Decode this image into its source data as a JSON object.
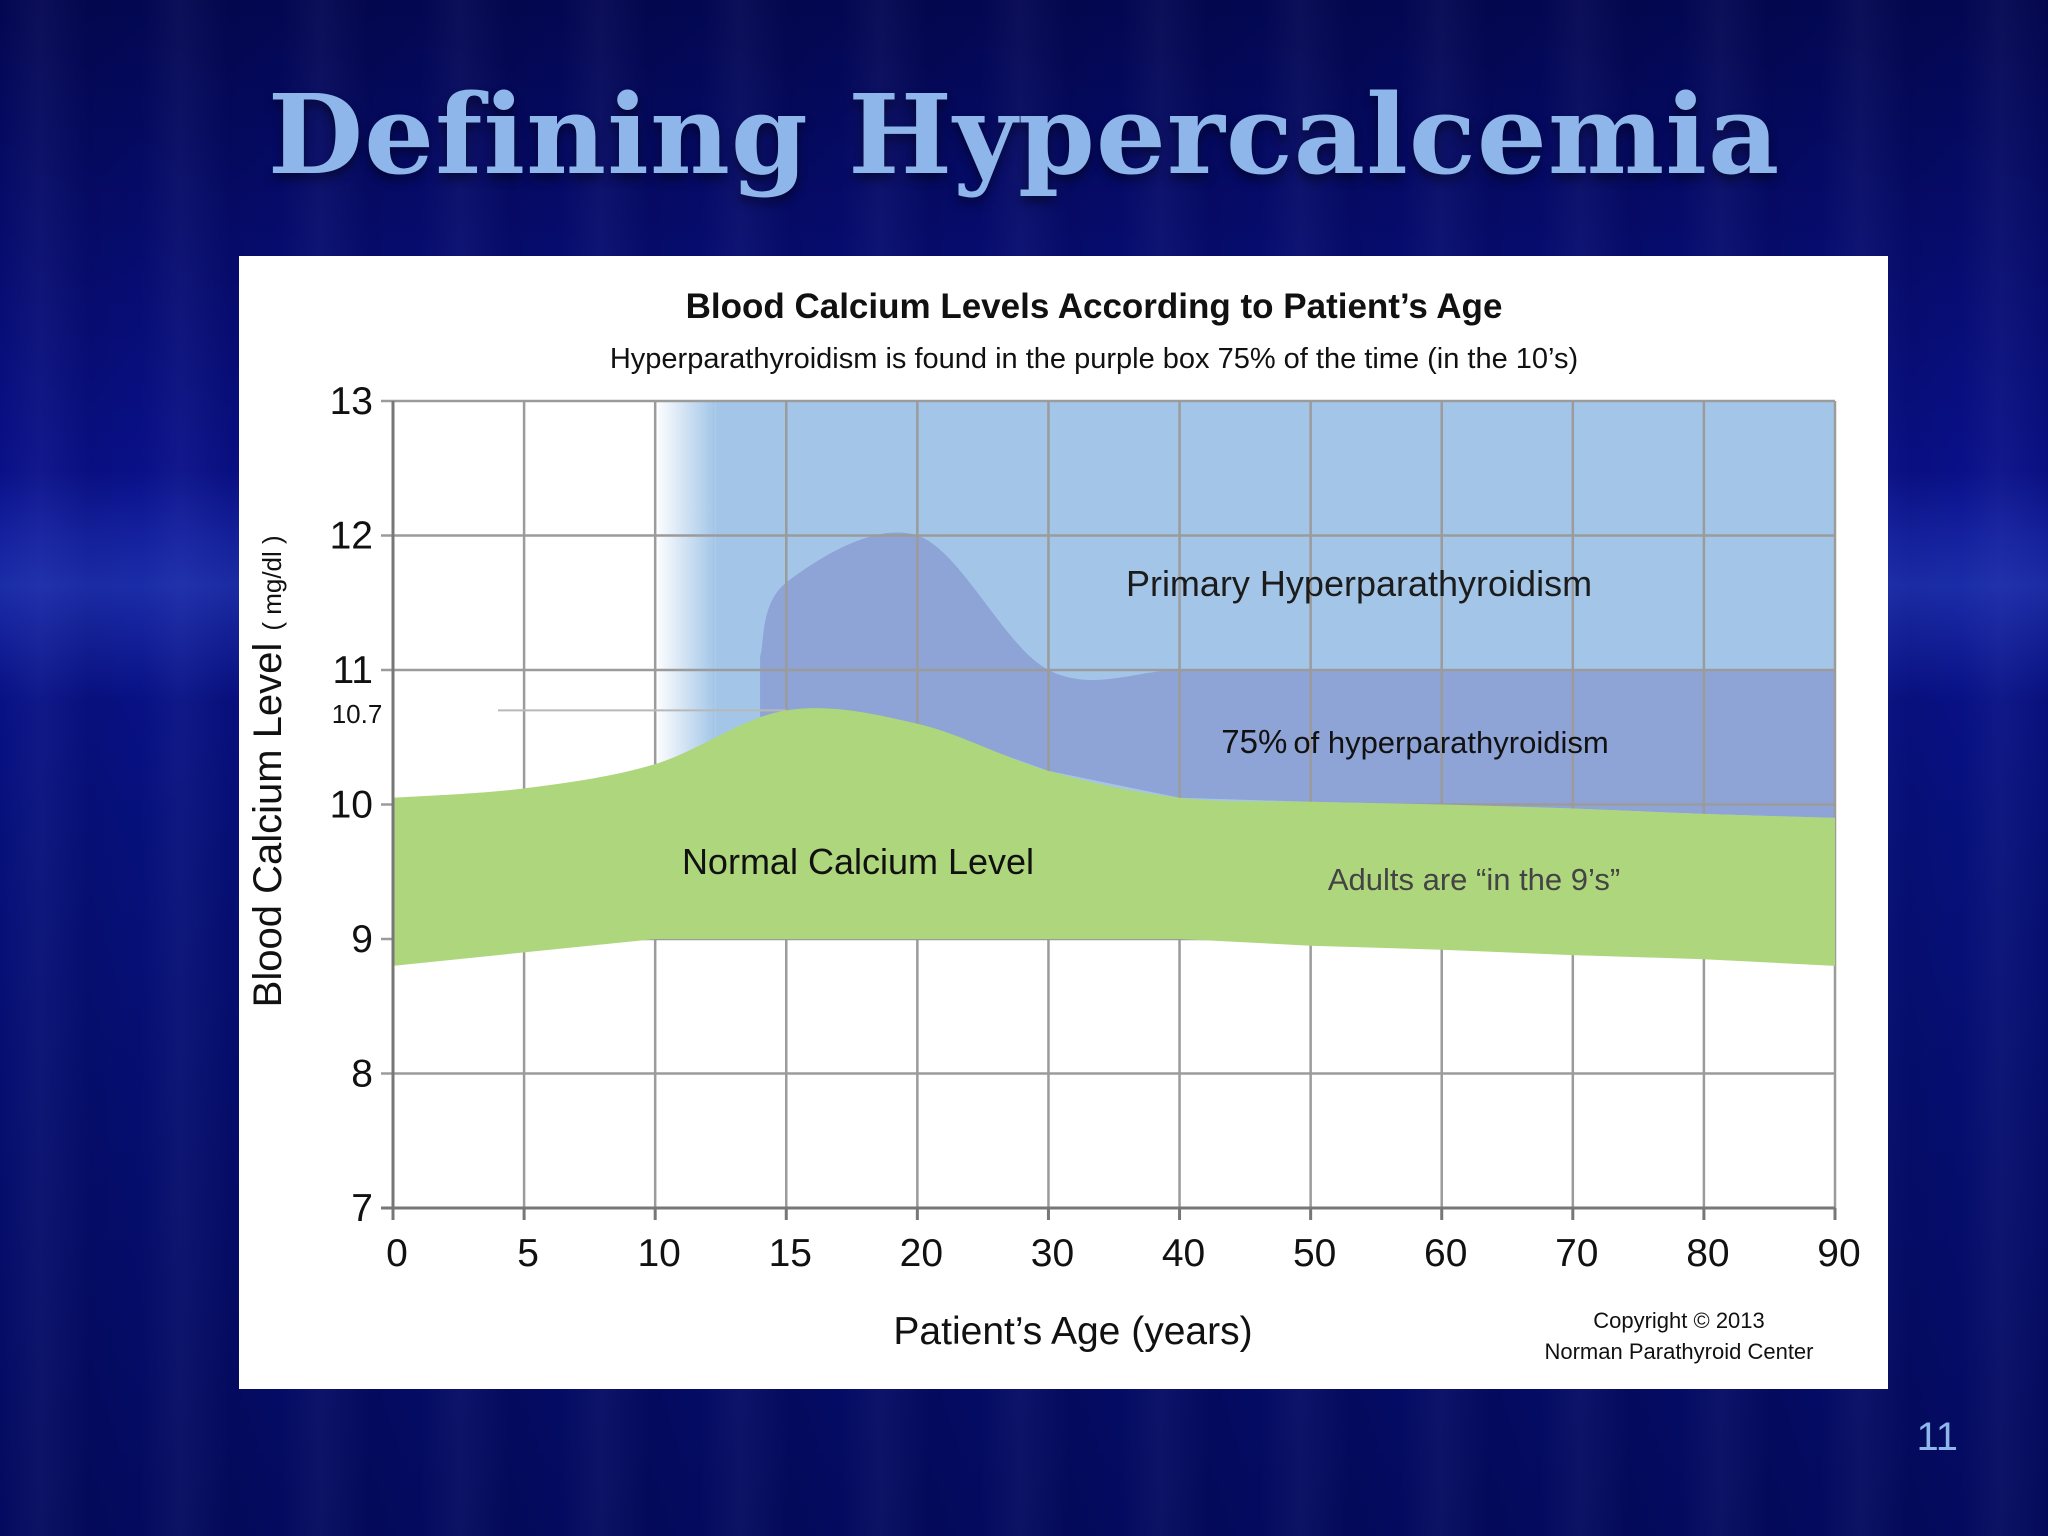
{
  "slide": {
    "title": "Defining Hypercalcemia",
    "page_number": "11"
  },
  "colors": {
    "background": "#04085e",
    "title": "#8fb6ea",
    "primary_hpt_band": "#a3c6e8",
    "hpt_75_band": "#8ea3d6",
    "normal_band": "#aed67c",
    "grid": "#9b9b9b"
  },
  "chart_data": {
    "type": "area",
    "title": "Blood Calcium Levels According to Patient’s Age",
    "subtitle": "Hyperparathyroidism is found in the purple box 75% of the time (in the 10’s)",
    "xlabel": "Patient’s  Age (years)",
    "ylabel": "Blood Calcium Level",
    "ylabel_units": "( mg/dl )",
    "x_ticks": [
      0,
      5,
      10,
      15,
      20,
      30,
      40,
      50,
      60,
      70,
      80,
      90
    ],
    "y_ticks": [
      7,
      8,
      9,
      10,
      11,
      12,
      13
    ],
    "ylim": [
      7,
      13
    ],
    "grid": true,
    "reference_line": {
      "label": "10.7",
      "y": 10.7
    },
    "series": [
      {
        "name": "Normal Calcium Level (upper bound)",
        "x": [
          0,
          5,
          10,
          15,
          20,
          30,
          40,
          50,
          60,
          70,
          80,
          90
        ],
        "values": [
          10.05,
          10.12,
          10.3,
          10.7,
          10.6,
          10.25,
          10.05,
          10.02,
          10.0,
          9.97,
          9.93,
          9.9
        ]
      },
      {
        "name": "Normal Calcium Level (lower bound)",
        "x": [
          0,
          5,
          10,
          15,
          20,
          30,
          40,
          50,
          60,
          70,
          80,
          90
        ],
        "values": [
          8.8,
          8.9,
          9.0,
          9.0,
          9.0,
          9.0,
          9.0,
          8.95,
          8.92,
          8.88,
          8.85,
          8.8
        ]
      },
      {
        "name": "75% of hyperparathyroidism (upper bound)",
        "x": [
          14,
          15,
          20,
          30,
          40,
          50,
          60,
          70,
          80,
          90
        ],
        "values": [
          11.1,
          11.65,
          12.0,
          11.0,
          11.0,
          11.0,
          11.0,
          11.0,
          11.0,
          11.0
        ]
      }
    ],
    "regions": [
      {
        "label": "Primary Hyperparathyroidism",
        "x_start": 10,
        "x_end": 90,
        "y_top": 13
      },
      {
        "label_number": "75%",
        "label_text": "of hyperparathyroidism"
      },
      {
        "label": "Normal Calcium Level"
      },
      {
        "label": "Adults are “in the 9’s”"
      }
    ],
    "copyright_line1": "Copyright © 2013",
    "copyright_line2": "Norman Parathyroid Center"
  }
}
